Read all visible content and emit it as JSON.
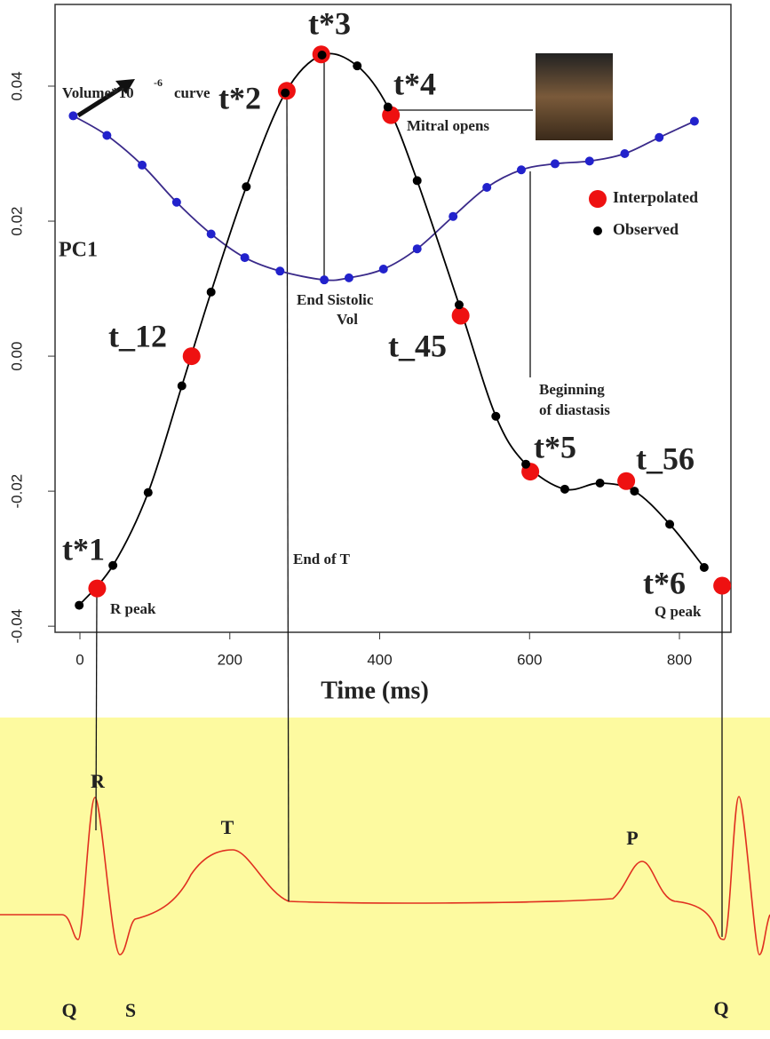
{
  "chart_data": {
    "type": "scatter",
    "xlabel": "Time (ms)",
    "ylabel": "PC1",
    "xlim": [
      -33.2,
      868.7
    ],
    "ylim": [
      -0.0409,
      0.0521
    ],
    "xticks": [
      0,
      200,
      400,
      600,
      800
    ],
    "yticks": [
      -0.04,
      -0.02,
      {
        "value": 0,
        "label": "0.00"
      },
      0.02,
      0.04
    ],
    "legend": "upper right",
    "series": [
      {
        "color": "#2222cc",
        "line_color": "#3a2a8a",
        "x": [
          -9,
          36,
          83,
          129,
          175,
          220,
          267,
          326,
          359,
          405,
          450,
          498,
          543,
          589,
          634,
          680,
          727,
          773,
          820
        ],
        "values": [
          0.0356,
          0.0327,
          0.0283,
          0.0228,
          0.0181,
          0.0146,
          0.0126,
          0.0113,
          0.0116,
          0.0129,
          0.0159,
          0.0207,
          0.025,
          0.0276,
          0.0285,
          0.0289,
          0.03,
          0.0324,
          0.0348
        ]
      },
      {
        "name": "Interpolated",
        "color": "#ee1111",
        "x": [
          23,
          149,
          276,
          322,
          415,
          508,
          601,
          729,
          857
        ],
        "values": [
          -0.0344,
          0.0,
          0.0393,
          0.0447,
          0.0357,
          0.006,
          -0.0171,
          -0.0185,
          -0.034
        ]
      },
      {
        "name": "Observed",
        "color": "#000000",
        "line_color": "#000000",
        "x": [
          -1,
          44,
          91,
          136,
          175,
          222,
          274,
          323,
          370,
          411,
          450,
          506,
          555,
          595,
          647,
          694,
          740,
          787,
          833
        ],
        "values": [
          -0.0369,
          -0.031,
          -0.0202,
          -0.0044,
          0.0095,
          0.0251,
          0.039,
          0.0446,
          0.043,
          0.0369,
          0.026,
          0.0076,
          -0.0089,
          -0.016,
          -0.0197,
          -0.0188,
          -0.02,
          -0.0249,
          -0.0313
        ]
      }
    ],
    "annotations": [
      "t*1",
      "t_12",
      "t*2",
      "t*3",
      "t*4",
      "t_45",
      "t*5",
      "t_56",
      "t*6",
      "R peak",
      "Mitral opens",
      "End Sistolic",
      "Vol",
      "Beginning",
      "of diastasis",
      "End of T",
      "Q peak",
      "Volume*10",
      "-6",
      "curve"
    ],
    "ecg_labels": [
      "R",
      "T",
      "P",
      "Q",
      "S",
      "Q"
    ]
  }
}
